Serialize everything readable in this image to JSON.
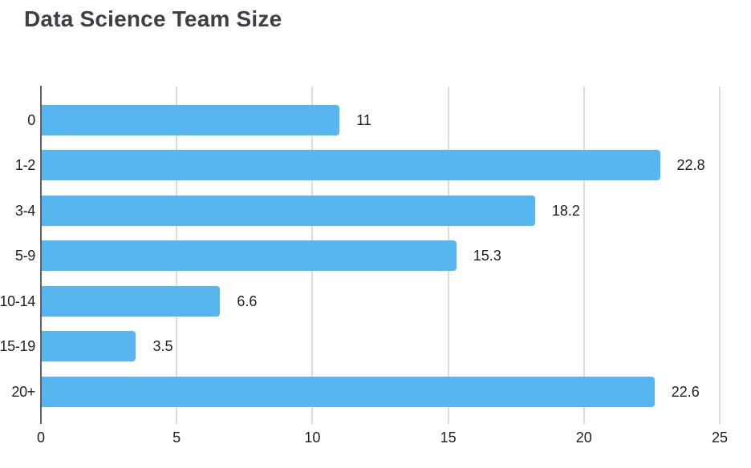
{
  "chart_data": {
    "type": "bar",
    "orientation": "horizontal",
    "title": "Data Science Team Size",
    "categories": [
      "0",
      "1-2",
      "3-4",
      "5-9",
      "10-14",
      "15-19",
      "20+"
    ],
    "values": [
      11,
      22.8,
      18.2,
      15.3,
      6.6,
      3.5,
      22.6
    ],
    "value_labels": [
      "11",
      "22.8",
      "18.2",
      "15.3",
      "6.6",
      "3.5",
      "22.6"
    ],
    "xlabel": "",
    "ylabel": "",
    "xlim": [
      0,
      25
    ],
    "x_ticks": [
      0,
      5,
      10,
      15,
      20,
      25
    ],
    "x_tick_labels": [
      "0",
      "5",
      "10",
      "15",
      "20",
      "25"
    ],
    "grid": "vertical-gridlines-on",
    "legend": "none",
    "colors": {
      "bar": "#57b6ef",
      "gridline": "#dcdcdc",
      "axis_line": "#616161",
      "label_text": "#1f1f1f",
      "title_text": "#3d4145",
      "background": "#ffffff"
    }
  }
}
